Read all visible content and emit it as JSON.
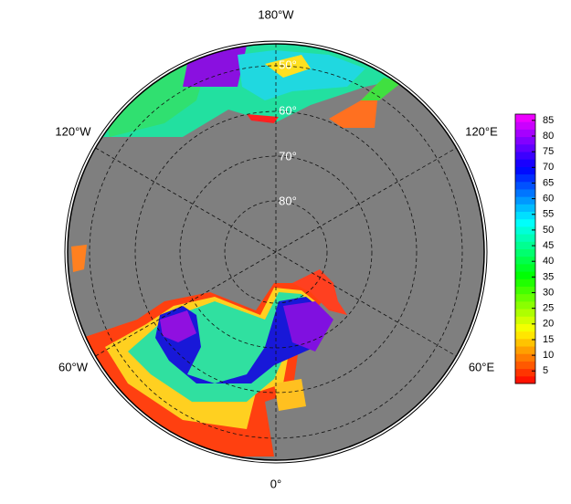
{
  "map": {
    "longitude_labels": {
      "top": "180°W",
      "upper_left": "120°W",
      "upper_right": "120°E",
      "lower_left": "60°W",
      "lower_right": "60°E",
      "bottom": "0°"
    },
    "latitude_labels": [
      "50°",
      "60°",
      "70°",
      "80°"
    ]
  },
  "colorbar": {
    "range": [
      1,
      87
    ],
    "ticks": [
      5,
      10,
      15,
      20,
      25,
      30,
      35,
      40,
      45,
      50,
      55,
      60,
      65,
      70,
      75,
      80,
      85
    ]
  }
}
